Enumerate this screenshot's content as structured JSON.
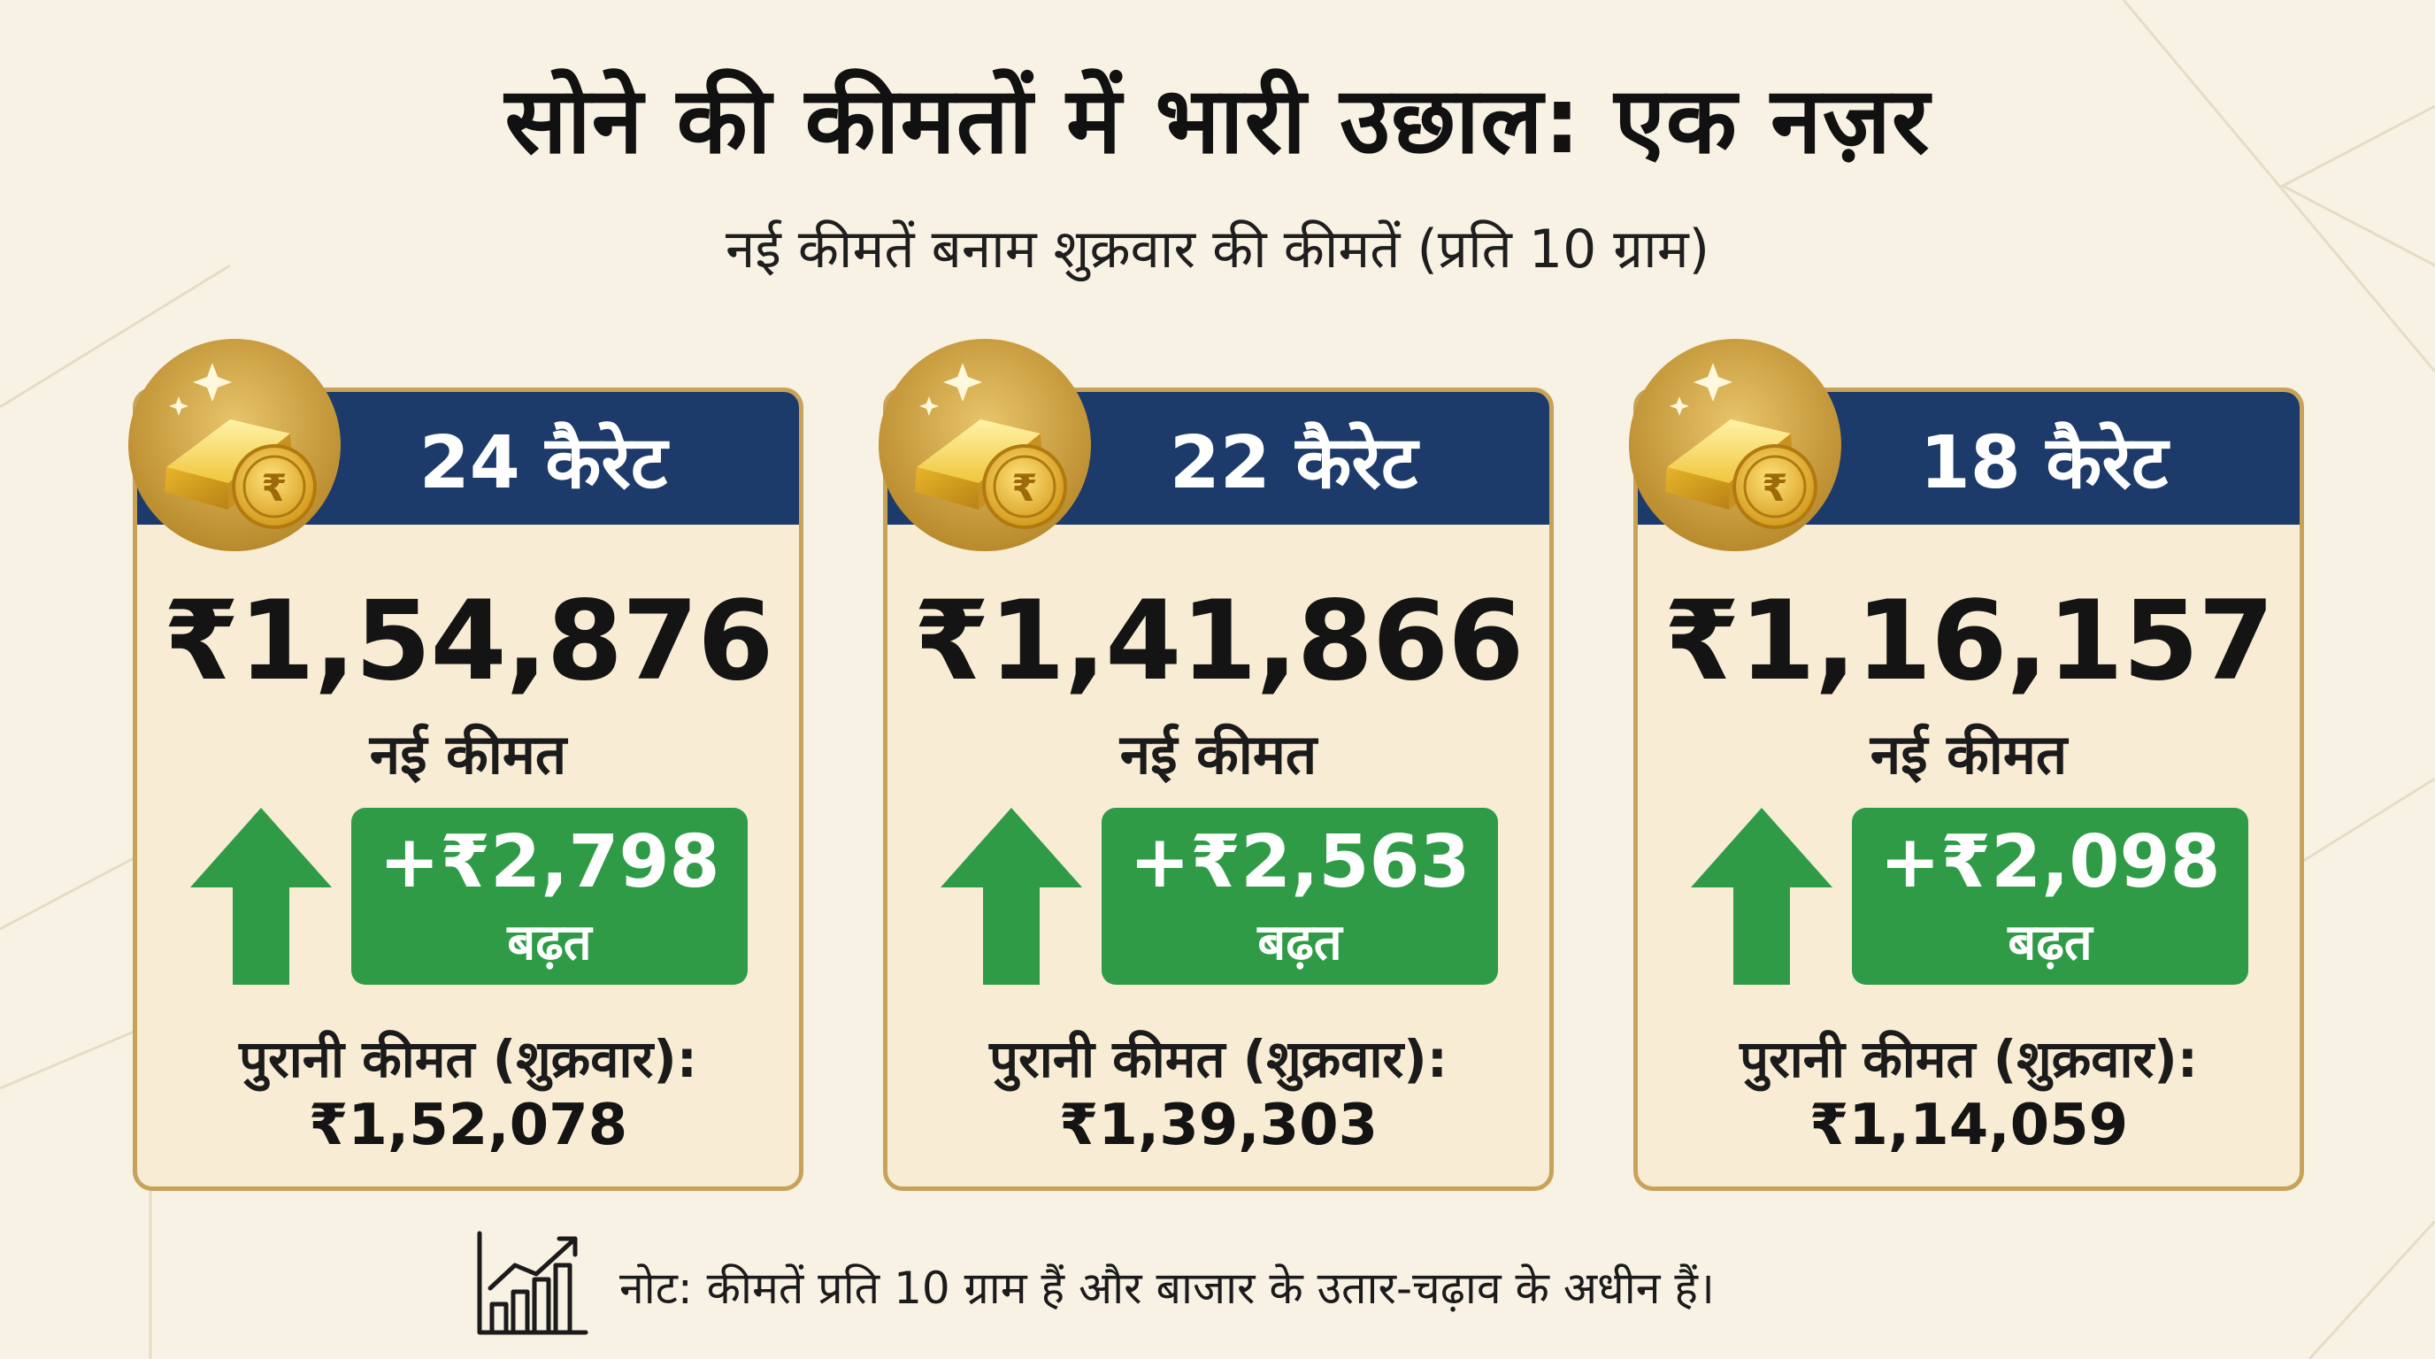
{
  "title": "सोने की कीमतों में भारी उछाल: एक नज़र",
  "subtitle": "नई कीमतें बनाम शुक्रवार की कीमतें (प्रति 10 ग्राम)",
  "colors": {
    "header_blue": "#1d3b6a",
    "increase_green": "#2f9b47",
    "card_border_gold": "#c9a25a",
    "card_bg": "#f8ecd4",
    "page_bg": "#f8f2e4"
  },
  "cards": [
    {
      "karat": "24 कैरेट",
      "new_price": "₹1,54,876",
      "new_price_label": "नई कीमत",
      "increase": "+₹2,798",
      "increase_label": "बढ़त",
      "old_price_label": "पुरानी कीमत (शुक्रवार):",
      "old_price": "₹1,52,078",
      "icon": "gold-bar-coin-icon"
    },
    {
      "karat": "22 कैरेट",
      "new_price": "₹1,41,866",
      "new_price_label": "नई कीमत",
      "increase": "+₹2,563",
      "increase_label": "बढ़त",
      "old_price_label": "पुरानी कीमत (शुक्रवार):",
      "old_price": "₹1,39,303",
      "icon": "gold-bar-coin-icon"
    },
    {
      "karat": "18 कैरेट",
      "new_price": "₹1,16,157",
      "new_price_label": "नई कीमत",
      "increase": "+₹2,098",
      "increase_label": "बढ़त",
      "old_price_label": "पुरानी कीमत (शुक्रवार):",
      "old_price": "₹1,14,059",
      "icon": "gold-bar-coin-icon"
    }
  ],
  "note": {
    "icon": "growth-chart-icon",
    "text": "नोट: कीमतें प्रति 10 ग्राम हैं और बाजार के उतार-चढ़ाव के अधीन हैं।"
  }
}
